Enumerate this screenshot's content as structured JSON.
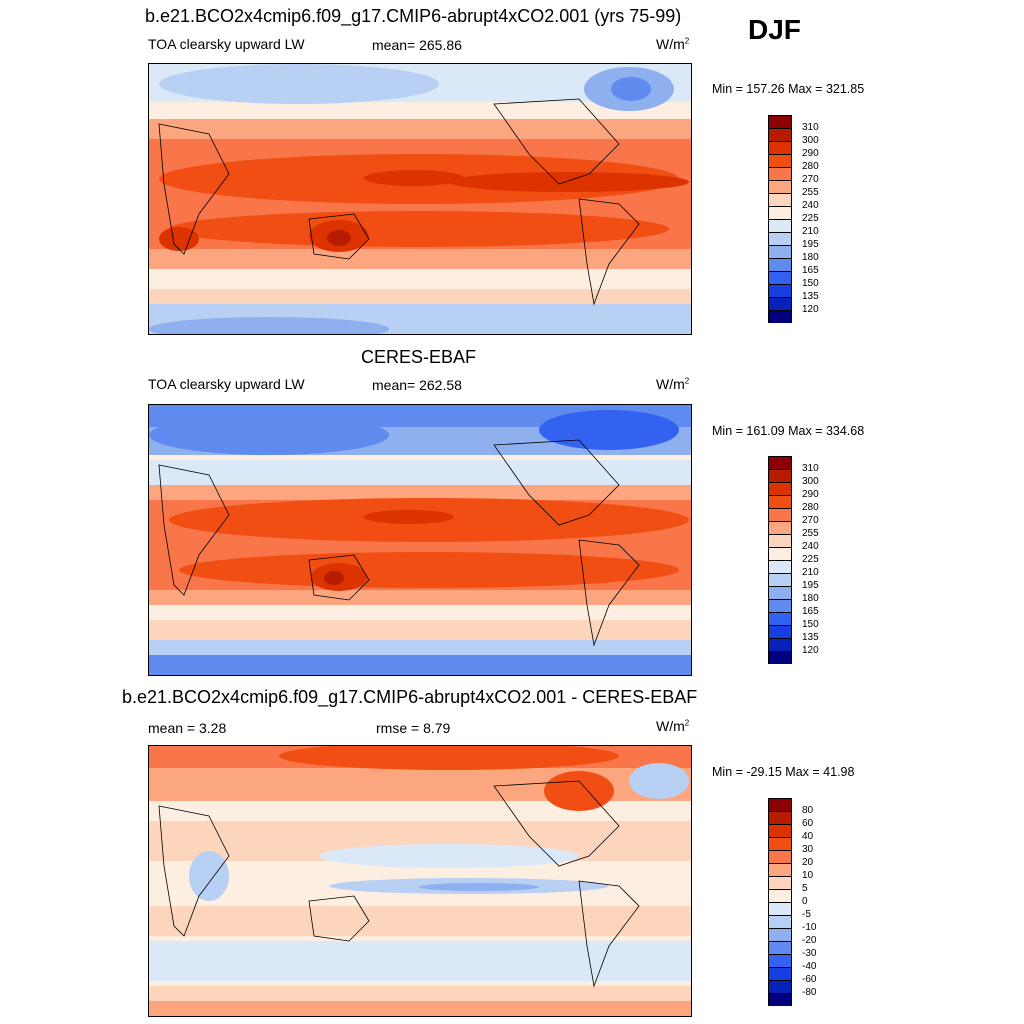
{
  "season": "DJF",
  "panels": [
    {
      "title": "b.e21.BCO2x4cmip6.f09_g17.CMIP6-abrupt4xCO2.001 (yrs 75-99)",
      "variable": "TOA clearsky upward LW",
      "stat": "mean= 265.86",
      "units": "W/m",
      "units_sup": "2",
      "minmax": "Min = 157.26 Max = 321.85"
    },
    {
      "title": "CERES-EBAF",
      "variable": "TOA clearsky upward LW",
      "stat": "mean= 262.58",
      "units": "W/m",
      "units_sup": "2",
      "minmax": "Min = 161.09 Max = 334.68"
    },
    {
      "title": "b.e21.BCO2x4cmip6.f09_g17.CMIP6-abrupt4xCO2.001 - CERES-EBAF",
      "stat": "mean =   3.28",
      "stat2": "rmse =   8.79",
      "units": "W/m",
      "units_sup": "2",
      "minmax": "Min = -29.15 Max =  41.98"
    }
  ],
  "colorbars": {
    "field": {
      "levels": [
        "310",
        "300",
        "290",
        "280",
        "270",
        "255",
        "240",
        "225",
        "210",
        "195",
        "180",
        "165",
        "150",
        "135",
        "120"
      ],
      "colors": [
        "#8b0000",
        "#b81c00",
        "#dc3300",
        "#f04e12",
        "#f9764a",
        "#fca680",
        "#fdd5bd",
        "#fdeee2",
        "#dbe8f8",
        "#b8d0f4",
        "#8fb0ef",
        "#5f8bee",
        "#3462f0",
        "#173ee0",
        "#0622b8",
        "#00007f"
      ]
    },
    "diff": {
      "levels": [
        "80",
        "60",
        "40",
        "30",
        "20",
        "10",
        "5",
        "0",
        "-5",
        "-10",
        "-20",
        "-30",
        "-40",
        "-60",
        "-80"
      ],
      "colors": [
        "#8b0000",
        "#b81c00",
        "#dc3300",
        "#f04e12",
        "#f9764a",
        "#fca680",
        "#fdd5bd",
        "#fdeee2",
        "#dbe8f8",
        "#b8d0f4",
        "#8fb0ef",
        "#5f8bee",
        "#3462f0",
        "#173ee0",
        "#0622b8",
        "#00007f"
      ]
    }
  }
}
